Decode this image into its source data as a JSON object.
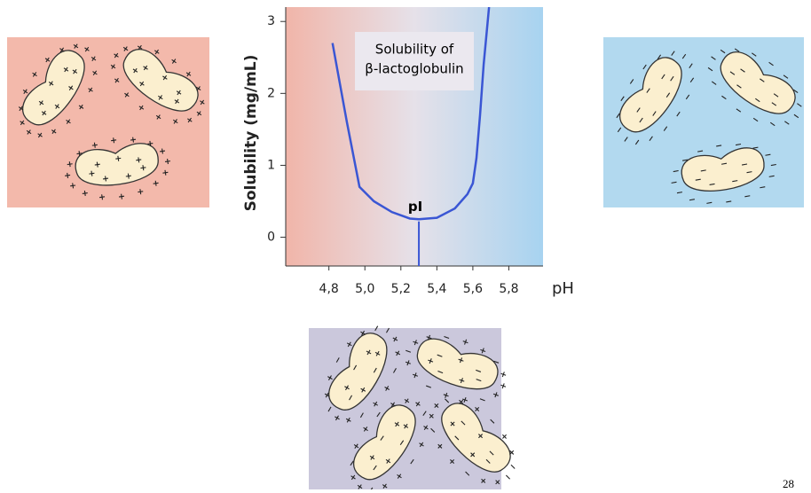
{
  "chart_data": {
    "type": "line",
    "annotations": [
      "Solubility of",
      "β-lactoglobulin"
    ],
    "marker": {
      "text": "pI",
      "x": 5.3,
      "y": 0.22
    },
    "x_label": "pH",
    "y_label": "Solubility  (mg/mL)",
    "series": [
      {
        "color": "#3a56d4",
        "x": [
          4.82,
          4.9,
          4.97,
          5.05,
          5.15,
          5.25,
          5.3,
          5.4,
          5.5,
          5.57,
          5.6,
          5.62,
          5.64,
          5.66,
          5.69
        ],
        "values": [
          2.7,
          1.6,
          0.7,
          0.5,
          0.35,
          0.26,
          0.25,
          0.27,
          0.4,
          0.6,
          0.75,
          1.1,
          1.7,
          2.4,
          3.2
        ]
      }
    ],
    "xlim": [
      4.56,
      5.99
    ],
    "ylim": [
      -0.4,
      3.2
    ],
    "xticks": [
      {
        "value": 4.8,
        "label": "4,8"
      },
      {
        "value": 5.0,
        "label": "5,0"
      },
      {
        "value": 5.2,
        "label": "5,2"
      },
      {
        "value": 5.4,
        "label": "5,4"
      },
      {
        "value": 5.6,
        "label": "5,6"
      },
      {
        "value": 5.8,
        "label": "5,8"
      }
    ],
    "yticks": [
      0,
      1,
      2,
      3
    ]
  },
  "page_number": "28"
}
